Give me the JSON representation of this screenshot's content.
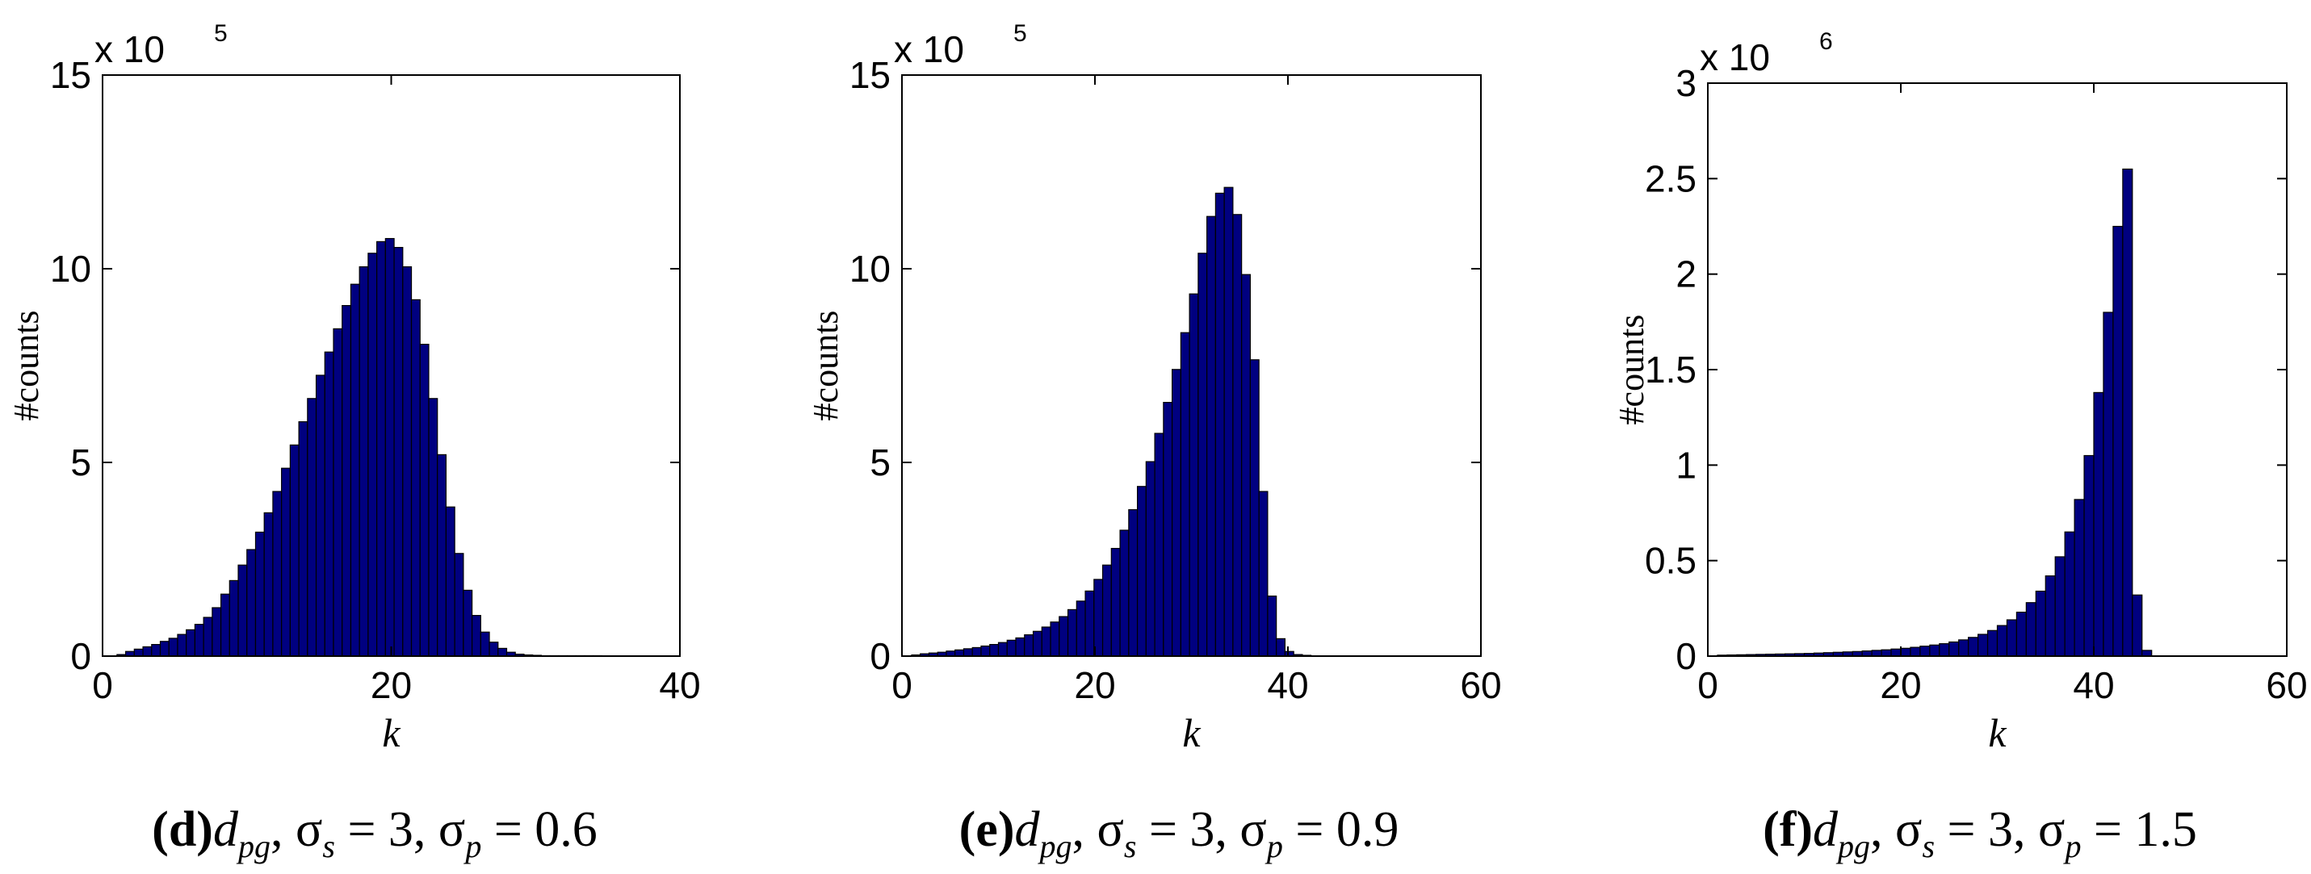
{
  "chart_data": [
    {
      "type": "bar",
      "panel": "d",
      "caption": {
        "letter": "(d)",
        "d": "d",
        "d_sub": "pg",
        "rest": ", σ",
        "s_sub": "s",
        "mid": " = 3, σ",
        "p_sub": "p",
        "end": " = 0.6"
      },
      "xlabel": "k",
      "ylabel": "#counts",
      "xlim": [
        0,
        40
      ],
      "ylim": [
        0,
        15
      ],
      "xticks": [
        0,
        20,
        40
      ],
      "yticks": [
        0,
        5,
        10,
        15
      ],
      "xtick_labels": [
        "0",
        "20",
        "40"
      ],
      "ytick_labels": [
        "0",
        "5",
        "10",
        "15"
      ],
      "multiplier": {
        "base": "x 10",
        "exp": "5"
      },
      "bar_color": "#000080",
      "bins": {
        "start": 1,
        "width": 0.6
      },
      "values": [
        0.04,
        0.12,
        0.18,
        0.24,
        0.3,
        0.38,
        0.46,
        0.56,
        0.68,
        0.82,
        1.0,
        1.25,
        1.6,
        1.95,
        2.35,
        2.75,
        3.2,
        3.7,
        4.25,
        4.85,
        5.45,
        6.05,
        6.65,
        7.25,
        7.85,
        8.45,
        9.05,
        9.6,
        10.05,
        10.4,
        10.7,
        10.78,
        10.55,
        10.05,
        9.2,
        8.05,
        6.65,
        5.2,
        3.85,
        2.65,
        1.7,
        1.05,
        0.62,
        0.36,
        0.2,
        0.1,
        0.05,
        0.03,
        0.02,
        0.01,
        0.01,
        0.01,
        0.01,
        0.01,
        0.01,
        0.01
      ]
    },
    {
      "type": "bar",
      "panel": "e",
      "caption": {
        "letter": "(e)",
        "d": "d",
        "d_sub": "pg",
        "rest": ", σ",
        "s_sub": "s",
        "mid": " = 3, σ",
        "p_sub": "p",
        "end": " = 0.9"
      },
      "xlabel": "k",
      "ylabel": "#counts",
      "xlim": [
        0,
        60
      ],
      "ylim": [
        0,
        15
      ],
      "xticks": [
        0,
        20,
        40,
        60
      ],
      "yticks": [
        0,
        5,
        10,
        15
      ],
      "xtick_labels": [
        "0",
        "20",
        "40",
        "60"
      ],
      "ytick_labels": [
        "0",
        "5",
        "10",
        "15"
      ],
      "multiplier": {
        "base": "x 10",
        "exp": "5"
      },
      "bar_color": "#000080",
      "bins": {
        "start": 1,
        "width": 0.9
      },
      "values": [
        0.03,
        0.06,
        0.08,
        0.1,
        0.13,
        0.16,
        0.19,
        0.22,
        0.26,
        0.3,
        0.35,
        0.41,
        0.47,
        0.55,
        0.64,
        0.75,
        0.88,
        1.02,
        1.2,
        1.42,
        1.68,
        1.98,
        2.35,
        2.78,
        3.25,
        3.78,
        4.38,
        5.02,
        5.75,
        6.55,
        7.4,
        8.35,
        9.35,
        10.4,
        11.35,
        11.95,
        12.1,
        11.4,
        9.85,
        7.65,
        4.25,
        1.55,
        0.45,
        0.12,
        0.04,
        0.02
      ]
    },
    {
      "type": "bar",
      "panel": "f",
      "caption": {
        "letter": "(f)",
        "d": "d",
        "d_sub": "pg",
        "rest": ", σ",
        "s_sub": "s",
        "mid": " = 3, σ",
        "p_sub": "p",
        "end": " = 1.5"
      },
      "xlabel": "k",
      "ylabel": "#counts",
      "xlim": [
        0,
        60
      ],
      "ylim": [
        0,
        3
      ],
      "xticks": [
        0,
        20,
        40,
        60
      ],
      "yticks": [
        0,
        0.5,
        1,
        1.5,
        2,
        2.5,
        3
      ],
      "xtick_labels": [
        "0",
        "20",
        "40",
        "60"
      ],
      "ytick_labels": [
        "0",
        "0.5",
        "1",
        "1.5",
        "2",
        "2.5",
        "3"
      ],
      "multiplier": {
        "base": "x 10",
        "exp": "6"
      },
      "bar_color": "#000080",
      "bins": {
        "start": 1,
        "width": 1.0
      },
      "values": [
        0.005,
        0.006,
        0.007,
        0.008,
        0.009,
        0.01,
        0.011,
        0.012,
        0.013,
        0.014,
        0.016,
        0.018,
        0.02,
        0.022,
        0.024,
        0.027,
        0.03,
        0.033,
        0.037,
        0.041,
        0.046,
        0.052,
        0.058,
        0.065,
        0.074,
        0.085,
        0.098,
        0.114,
        0.134,
        0.16,
        0.19,
        0.23,
        0.28,
        0.34,
        0.42,
        0.52,
        0.65,
        0.82,
        1.05,
        1.38,
        1.8,
        2.25,
        2.55,
        0.32,
        0.03
      ]
    }
  ]
}
